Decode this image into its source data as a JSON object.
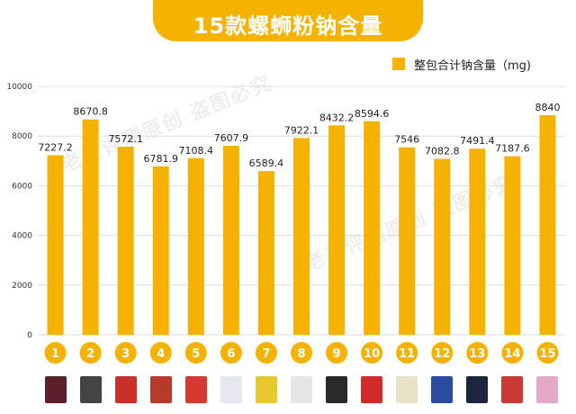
{
  "title": "15款螺蛳粉钠含量",
  "watermark": "老爸评测原创 盗图必究",
  "chart_data": {
    "type": "bar",
    "title": "15款螺蛳粉钠含量",
    "categories": [
      "1",
      "2",
      "3",
      "4",
      "5",
      "6",
      "7",
      "8",
      "9",
      "10",
      "11",
      "12",
      "13",
      "14",
      "15"
    ],
    "series": [
      {
        "name": "整包合计钠含量（mg)",
        "values": [
          7227.2,
          8670.8,
          7572.1,
          6781.9,
          7108.4,
          7607.9,
          6589.4,
          7922.1,
          8432.2,
          8594.6,
          7546,
          7082.8,
          7491.4,
          7187.6,
          8840
        ],
        "labels": [
          "7227.2",
          "8670.8",
          "7572.1",
          "6781.9",
          "7108.4",
          "7607.9",
          "6589.4",
          "7922.1",
          "8432.2",
          "8594.6",
          "7546",
          "7082.8",
          "7491.4",
          "7187.6",
          "8840"
        ]
      }
    ],
    "ylim": [
      0,
      10000
    ],
    "yticks": [
      "0",
      "2000",
      "4000",
      "6000",
      "8000",
      "10000"
    ],
    "xlabel": "",
    "ylabel": "",
    "grid": true,
    "legend_position": "top-right",
    "bar_color": "#F6B200",
    "grid_color": "#dddddd"
  },
  "product_thumbnails": [
    {
      "icon": "product-package-1",
      "color": "#5a1f2b"
    },
    {
      "icon": "product-package-2",
      "color": "#444444"
    },
    {
      "icon": "product-package-3",
      "color": "#c9302c"
    },
    {
      "icon": "product-package-4",
      "color": "#b73a2a"
    },
    {
      "icon": "product-package-5",
      "color": "#d43a2f"
    },
    {
      "icon": "product-package-6",
      "color": "#e7e7f0"
    },
    {
      "icon": "product-package-7",
      "color": "#e8c830"
    },
    {
      "icon": "product-package-8",
      "color": "#e6e6e6"
    },
    {
      "icon": "product-package-9",
      "color": "#2a2a2a"
    },
    {
      "icon": "product-package-10",
      "color": "#d22a2a"
    },
    {
      "icon": "product-package-11",
      "color": "#e9e2c8"
    },
    {
      "icon": "product-package-12",
      "color": "#2b4ba0"
    },
    {
      "icon": "product-package-13",
      "color": "#1d2540"
    },
    {
      "icon": "product-package-14",
      "color": "#c93a34"
    },
    {
      "icon": "product-package-15",
      "color": "#e6a8c8"
    }
  ]
}
